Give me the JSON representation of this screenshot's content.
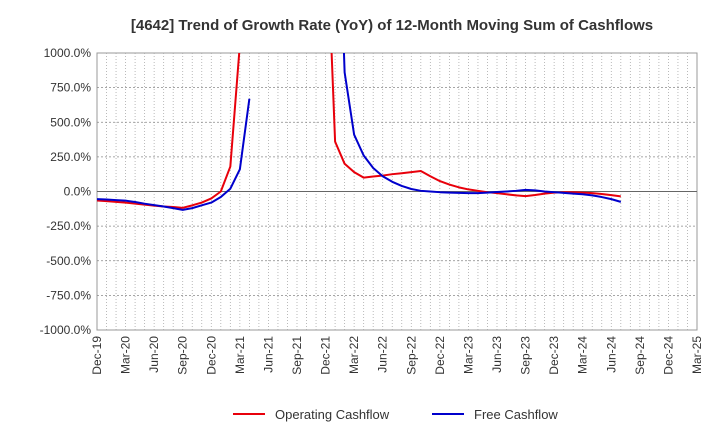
{
  "chart_data": {
    "type": "line",
    "title": "[4642]  Trend of Growth Rate (YoY) of 12-Month Moving Sum of Cashflows",
    "xlabel": "",
    "ylabel": "",
    "ylim": [
      -1000,
      1000
    ],
    "y_ticks": [
      "1000.0%",
      "750.0%",
      "500.0%",
      "250.0%",
      "0.0%",
      "-250.0%",
      "-500.0%",
      "-750.0%",
      "-1000.0%"
    ],
    "y_tick_values": [
      1000,
      750,
      500,
      250,
      0,
      -250,
      -500,
      -750,
      -1000
    ],
    "x_ticks": [
      "Dec-19",
      "Mar-20",
      "Jun-20",
      "Sep-20",
      "Dec-20",
      "Mar-21",
      "Jun-21",
      "Sep-21",
      "Dec-21",
      "Mar-22",
      "Jun-22",
      "Sep-22",
      "Dec-22",
      "Mar-23",
      "Jun-23",
      "Sep-23",
      "Dec-23",
      "Mar-24",
      "Jun-24",
      "Sep-24",
      "Dec-24",
      "Mar-25"
    ],
    "grid": true,
    "legend_position": "bottom",
    "series": [
      {
        "name": "Operating Cashflow",
        "color": "#e8000b",
        "points": [
          [
            0,
            -65
          ],
          [
            1,
            -70
          ],
          [
            2,
            -75
          ],
          [
            3,
            -80
          ],
          [
            4,
            -88
          ],
          [
            5,
            -95
          ],
          [
            6,
            -102
          ],
          [
            7,
            -108
          ],
          [
            8,
            -112
          ],
          [
            9,
            -118
          ],
          [
            10,
            -100
          ],
          [
            11,
            -80
          ],
          [
            12,
            -50
          ],
          [
            13,
            0
          ],
          [
            14,
            180
          ],
          [
            15,
            1060
          ],
          null,
          [
            24.6,
            1060
          ],
          [
            25,
            360
          ],
          [
            26,
            200
          ],
          [
            27,
            140
          ],
          [
            28,
            100
          ],
          [
            29,
            108
          ],
          [
            30,
            115
          ],
          [
            31,
            125
          ],
          [
            32,
            132
          ],
          [
            33,
            140
          ],
          [
            34,
            148
          ],
          [
            35,
            110
          ],
          [
            36,
            75
          ],
          [
            37,
            50
          ],
          [
            38,
            30
          ],
          [
            39,
            15
          ],
          [
            40,
            5
          ],
          [
            41,
            -5
          ],
          [
            42,
            -12
          ],
          [
            43,
            -20
          ],
          [
            44,
            -28
          ],
          [
            45,
            -33
          ],
          [
            46,
            -25
          ],
          [
            47,
            -15
          ],
          [
            48,
            -8
          ],
          [
            49,
            -5
          ],
          [
            50,
            -5
          ],
          [
            51,
            -8
          ],
          [
            52,
            -12
          ],
          [
            53,
            -18
          ],
          [
            54,
            -26
          ],
          [
            55,
            -35
          ]
        ]
      },
      {
        "name": "Free Cashflow",
        "color": "#0000cc",
        "points": [
          [
            0,
            -55
          ],
          [
            1,
            -58
          ],
          [
            2,
            -62
          ],
          [
            3,
            -66
          ],
          [
            4,
            -76
          ],
          [
            5,
            -88
          ],
          [
            6,
            -98
          ],
          [
            7,
            -108
          ],
          [
            8,
            -120
          ],
          [
            9,
            -133
          ],
          [
            10,
            -120
          ],
          [
            11,
            -100
          ],
          [
            12,
            -80
          ],
          [
            13,
            -40
          ],
          [
            14,
            20
          ],
          [
            15,
            160
          ],
          [
            16,
            670
          ],
          null,
          [
            25.9,
            1060
          ],
          [
            26,
            860
          ],
          [
            27,
            410
          ],
          [
            28,
            260
          ],
          [
            29,
            170
          ],
          [
            30,
            110
          ],
          [
            31,
            70
          ],
          [
            32,
            40
          ],
          [
            33,
            18
          ],
          [
            34,
            5
          ],
          [
            35,
            0
          ],
          [
            36,
            -5
          ],
          [
            37,
            -8
          ],
          [
            38,
            -10
          ],
          [
            39,
            -12
          ],
          [
            40,
            -12
          ],
          [
            41,
            -8
          ],
          [
            42,
            -4
          ],
          [
            43,
            0
          ],
          [
            44,
            5
          ],
          [
            45,
            12
          ],
          [
            46,
            8
          ],
          [
            47,
            0
          ],
          [
            48,
            -5
          ],
          [
            49,
            -10
          ],
          [
            50,
            -15
          ],
          [
            51,
            -20
          ],
          [
            52,
            -28
          ],
          [
            53,
            -40
          ],
          [
            54,
            -55
          ],
          [
            55,
            -75
          ]
        ]
      }
    ]
  }
}
